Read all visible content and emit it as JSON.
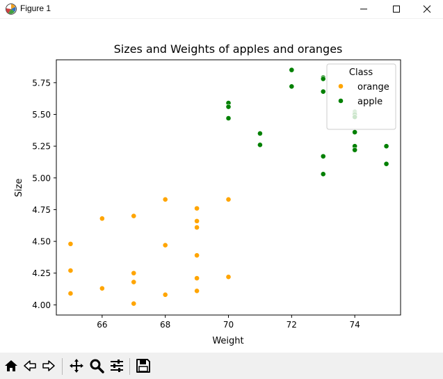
{
  "window": {
    "title": "Figure 1",
    "controls": [
      "minimize",
      "maximize",
      "close"
    ]
  },
  "toolbar": {
    "icons": [
      "home-icon",
      "back-icon",
      "forward-icon",
      "pan-icon",
      "zoom-icon",
      "configure-subplots-icon",
      "save-icon"
    ]
  },
  "colors": {
    "orange": "#ffa500",
    "apple": "#008000",
    "toolbar_bg": "#f0f0f0"
  },
  "chart_data": {
    "type": "scatter",
    "title": "Sizes and Weights of apples and oranges",
    "xlabel": "Weight",
    "ylabel": "Size",
    "xlim": [
      64.55,
      75.45
    ],
    "ylim": [
      3.92,
      5.93
    ],
    "xticks": [
      66,
      68,
      70,
      72,
      74
    ],
    "xtick_labels": [
      "66",
      "68",
      "70",
      "72",
      "74"
    ],
    "yticks": [
      4.0,
      4.25,
      4.5,
      4.75,
      5.0,
      5.25,
      5.5,
      5.75
    ],
    "ytick_labels": [
      "4.00",
      "4.25",
      "4.50",
      "4.75",
      "5.00",
      "5.25",
      "5.50",
      "5.75"
    ],
    "grid": false,
    "legend": {
      "title": "Class",
      "placement": "top-right"
    },
    "series": [
      {
        "name": "orange",
        "color": "#ffa500",
        "points": [
          [
            65,
            4.48
          ],
          [
            65,
            4.27
          ],
          [
            65,
            4.09
          ],
          [
            66,
            4.68
          ],
          [
            66,
            4.13
          ],
          [
            67,
            4.7
          ],
          [
            67,
            4.25
          ],
          [
            67,
            4.18
          ],
          [
            67,
            4.01
          ],
          [
            68,
            4.83
          ],
          [
            68,
            4.47
          ],
          [
            68,
            4.08
          ],
          [
            69,
            4.76
          ],
          [
            69,
            4.66
          ],
          [
            69,
            4.61
          ],
          [
            69,
            4.39
          ],
          [
            69,
            4.21
          ],
          [
            69,
            4.11
          ],
          [
            70,
            4.83
          ],
          [
            70,
            4.22
          ]
        ]
      },
      {
        "name": "apple",
        "color": "#008000",
        "points": [
          [
            70,
            5.59
          ],
          [
            70,
            5.56
          ],
          [
            70,
            5.47
          ],
          [
            71,
            5.35
          ],
          [
            71,
            5.26
          ],
          [
            72,
            5.85
          ],
          [
            72,
            5.72
          ],
          [
            73,
            5.79
          ],
          [
            73,
            5.78
          ],
          [
            73,
            5.68
          ],
          [
            73,
            5.17
          ],
          [
            73,
            5.03
          ],
          [
            74,
            5.52
          ],
          [
            74,
            5.51
          ],
          [
            74,
            5.5
          ],
          [
            74,
            5.48
          ],
          [
            74,
            5.36
          ],
          [
            74,
            5.25
          ],
          [
            74,
            5.22
          ],
          [
            75,
            5.25
          ],
          [
            75,
            5.11
          ]
        ]
      }
    ]
  }
}
